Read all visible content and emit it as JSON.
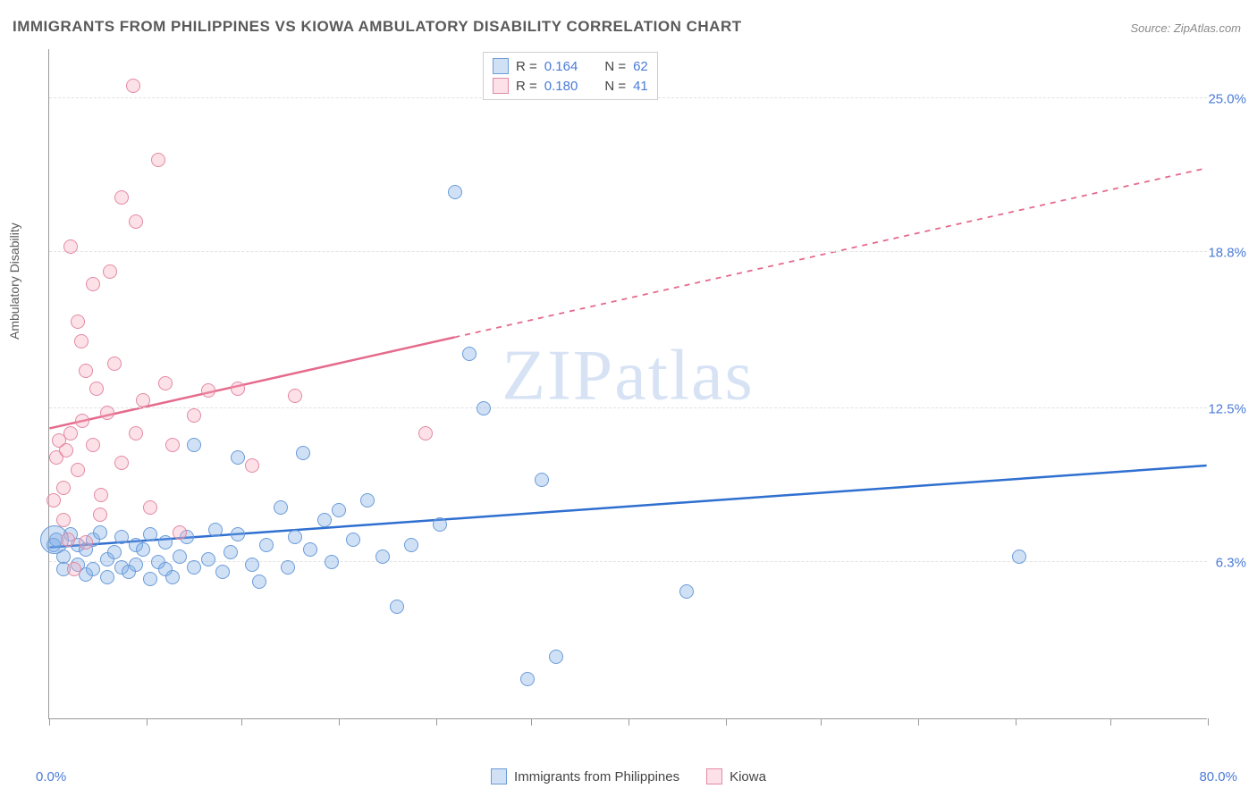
{
  "title": "IMMIGRANTS FROM PHILIPPINES VS KIOWA AMBULATORY DISABILITY CORRELATION CHART",
  "source_label": "Source: ZipAtlas.com",
  "watermark": {
    "part1": "ZIP",
    "part2": "atlas"
  },
  "y_axis_label": "Ambulatory Disability",
  "axes": {
    "x_min_label": "0.0%",
    "x_max_label": "80.0%",
    "x_domain": [
      0,
      80
    ],
    "y_domain": [
      0,
      27
    ],
    "y_gridlines": [
      6.3,
      12.5,
      18.8,
      25.0
    ],
    "y_tick_labels": [
      "6.3%",
      "12.5%",
      "18.8%",
      "25.0%"
    ],
    "x_ticks": [
      0,
      6.7,
      13.3,
      20,
      26.7,
      33.3,
      40,
      46.7,
      53.3,
      60,
      66.7,
      73.3,
      80
    ],
    "grid_color": "#e2e2e2",
    "axis_color": "#9a9a9a"
  },
  "series": [
    {
      "id": "philippines",
      "label": "Immigrants from Philippines",
      "fill": "rgba(120,170,230,0.35)",
      "stroke": "#6b9bd8",
      "line_color": "#2f6fd0",
      "marker_radius": 8,
      "stats": {
        "R": "0.164",
        "N": "62"
      },
      "trend": {
        "x1": 0,
        "y1": 6.9,
        "x2": 80,
        "y2": 10.2,
        "solid_until_x": 80
      },
      "points": [
        [
          0.3,
          7.0
        ],
        [
          0.5,
          7.2
        ],
        [
          1,
          6.5
        ],
        [
          1,
          6.0
        ],
        [
          1.5,
          7.4
        ],
        [
          2,
          6.2
        ],
        [
          2,
          7.0
        ],
        [
          2.5,
          5.8
        ],
        [
          2.5,
          6.8
        ],
        [
          3,
          7.2
        ],
        [
          3,
          6.0
        ],
        [
          3.5,
          7.5
        ],
        [
          4,
          6.4
        ],
        [
          4,
          5.7
        ],
        [
          4.5,
          6.7
        ],
        [
          5,
          6.1
        ],
        [
          5,
          7.3
        ],
        [
          5.5,
          5.9
        ],
        [
          6,
          6.2
        ],
        [
          6,
          7.0
        ],
        [
          6.5,
          6.8
        ],
        [
          7,
          5.6
        ],
        [
          7,
          7.4
        ],
        [
          7.5,
          6.3
        ],
        [
          8,
          6.0
        ],
        [
          8,
          7.1
        ],
        [
          8.5,
          5.7
        ],
        [
          9,
          6.5
        ],
        [
          9.5,
          7.3
        ],
        [
          10,
          6.1
        ],
        [
          10,
          11.0
        ],
        [
          11,
          6.4
        ],
        [
          11.5,
          7.6
        ],
        [
          12,
          5.9
        ],
        [
          12.5,
          6.7
        ],
        [
          13,
          7.4
        ],
        [
          13,
          10.5
        ],
        [
          14,
          6.2
        ],
        [
          14.5,
          5.5
        ],
        [
          15,
          7.0
        ],
        [
          16,
          8.5
        ],
        [
          16.5,
          6.1
        ],
        [
          17,
          7.3
        ],
        [
          17.5,
          10.7
        ],
        [
          18,
          6.8
        ],
        [
          19,
          8.0
        ],
        [
          19.5,
          6.3
        ],
        [
          20,
          8.4
        ],
        [
          21,
          7.2
        ],
        [
          22,
          8.8
        ],
        [
          23,
          6.5
        ],
        [
          24,
          4.5
        ],
        [
          25,
          7.0
        ],
        [
          27,
          7.8
        ],
        [
          28,
          21.2
        ],
        [
          29,
          14.7
        ],
        [
          30,
          12.5
        ],
        [
          33,
          1.6
        ],
        [
          34,
          9.6
        ],
        [
          35,
          2.5
        ],
        [
          44,
          5.1
        ],
        [
          67,
          6.5
        ]
      ],
      "big_points": [
        {
          "x": 0.4,
          "y": 7.2,
          "r": 16
        }
      ]
    },
    {
      "id": "kiowa",
      "label": "Kiowa",
      "fill": "rgba(245,170,190,0.35)",
      "stroke": "#e389a2",
      "line_color": "#e56a8c",
      "marker_radius": 8,
      "stats": {
        "R": "0.180",
        "N": "41"
      },
      "trend": {
        "x1": 0,
        "y1": 11.7,
        "x2": 80,
        "y2": 22.2,
        "solid_until_x": 28
      },
      "points": [
        [
          0.3,
          8.8
        ],
        [
          0.5,
          10.5
        ],
        [
          0.7,
          11.2
        ],
        [
          1,
          9.3
        ],
        [
          1,
          8.0
        ],
        [
          1.2,
          10.8
        ],
        [
          1.3,
          7.2
        ],
        [
          1.5,
          11.5
        ],
        [
          1.5,
          19.0
        ],
        [
          1.7,
          6.0
        ],
        [
          2,
          10.0
        ],
        [
          2,
          16.0
        ],
        [
          2.2,
          15.2
        ],
        [
          2.3,
          12.0
        ],
        [
          2.5,
          7.1
        ],
        [
          2.5,
          14.0
        ],
        [
          3,
          11.0
        ],
        [
          3,
          17.5
        ],
        [
          3.3,
          13.3
        ],
        [
          3.5,
          8.2
        ],
        [
          3.6,
          9.0
        ],
        [
          4,
          12.3
        ],
        [
          4.2,
          18.0
        ],
        [
          4.5,
          14.3
        ],
        [
          5,
          10.3
        ],
        [
          5,
          21.0
        ],
        [
          5.8,
          25.5
        ],
        [
          6,
          11.5
        ],
        [
          6,
          20.0
        ],
        [
          6.5,
          12.8
        ],
        [
          7,
          8.5
        ],
        [
          7.5,
          22.5
        ],
        [
          8,
          13.5
        ],
        [
          8.5,
          11.0
        ],
        [
          9,
          7.5
        ],
        [
          10,
          12.2
        ],
        [
          11,
          13.2
        ],
        [
          13,
          13.3
        ],
        [
          14,
          10.2
        ],
        [
          17,
          13.0
        ],
        [
          26,
          11.5
        ]
      ]
    }
  ],
  "legend_top": {
    "R_label": "R =",
    "N_label": "N ="
  },
  "colors": {
    "label_blue": "#4a7bd8",
    "text_gray": "#5a5a5a"
  }
}
